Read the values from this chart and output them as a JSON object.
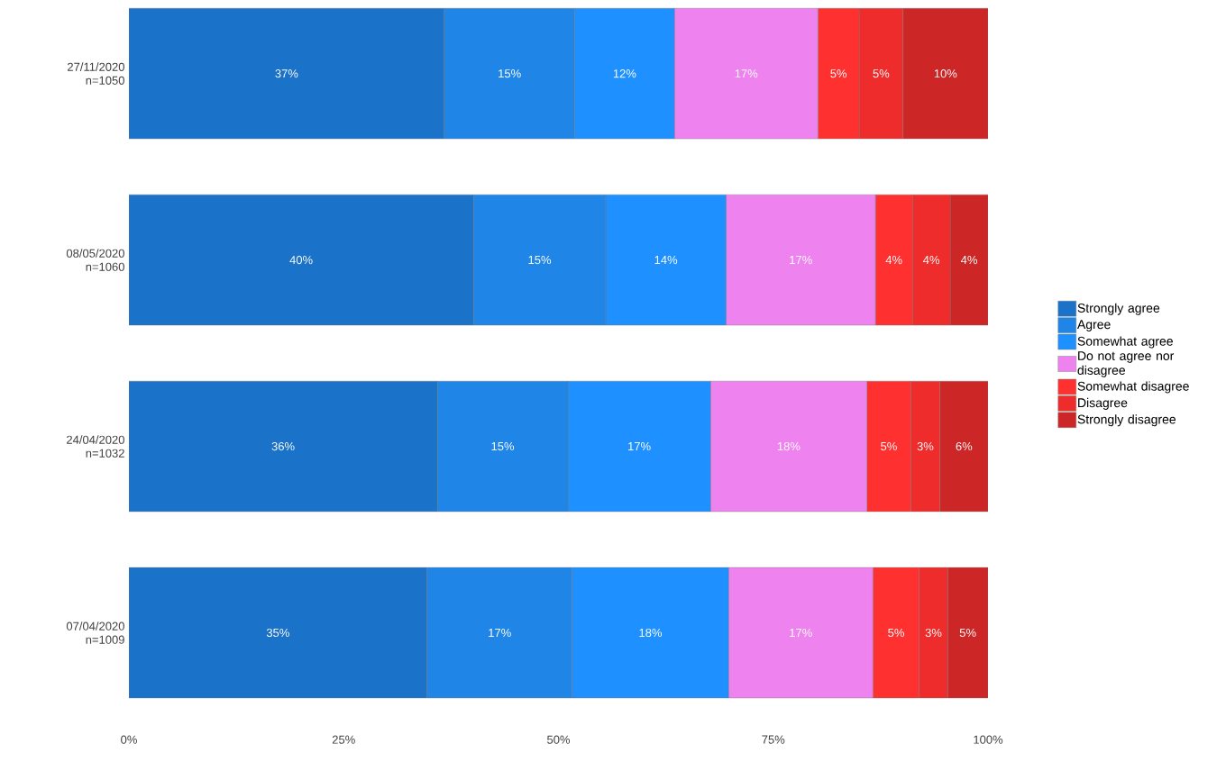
{
  "chart_data": {
    "type": "bar",
    "orientation": "horizontal",
    "stacked": true,
    "legend": "right",
    "categories": [
      "27/11/2020 n=1050",
      "08/05/2020 n=1060",
      "24/04/2020 n=1032",
      "07/04/2020 n=1009"
    ],
    "series": [
      {
        "name": "Strongly agree",
        "color": "#1a72c9",
        "values": [
          36.7,
          40.1,
          35.9,
          34.7
        ],
        "value_labels": [
          "37%",
          "40%",
          "36%",
          "35%"
        ]
      },
      {
        "name": "Agree",
        "color": "#1f86e8",
        "values": [
          15.2,
          15.4,
          15.2,
          16.9
        ],
        "value_labels": [
          "15%",
          "15%",
          "15%",
          "17%"
        ]
      },
      {
        "name": "Somewhat agree",
        "color": "#1e90ff",
        "values": [
          11.6,
          14.0,
          16.6,
          18.2
        ],
        "value_labels": [
          "12%",
          "14%",
          "17%",
          "18%"
        ]
      },
      {
        "name": "Do not agree nor disagree",
        "color": "#ee82ee",
        "values": [
          16.7,
          17.4,
          18.2,
          16.8
        ],
        "value_labels": [
          "17%",
          "17%",
          "18%",
          "17%"
        ]
      },
      {
        "name": "Somewhat disagree",
        "color": "#ff3030",
        "values": [
          4.8,
          4.3,
          5.1,
          5.4
        ],
        "value_labels": [
          "5%",
          "4%",
          "5%",
          "5%"
        ]
      },
      {
        "name": "Disagree",
        "color": "#ee2c2c",
        "values": [
          5.1,
          4.4,
          3.4,
          3.3
        ],
        "value_labels": [
          "5%",
          "4%",
          "3%",
          "3%"
        ]
      },
      {
        "name": "Strongly disagree",
        "color": "#cd2626",
        "values": [
          9.9,
          4.4,
          5.6,
          4.7
        ],
        "value_labels": [
          "10%",
          "4%",
          "6%",
          "5%"
        ]
      }
    ],
    "xlim": [
      0,
      100
    ],
    "xticks": [
      {
        "value": 0,
        "label": "0%"
      },
      {
        "value": 25,
        "label": "25%"
      },
      {
        "value": 50,
        "label": "50%"
      },
      {
        "value": 75,
        "label": "75%"
      },
      {
        "value": 100,
        "label": "100%"
      }
    ]
  }
}
